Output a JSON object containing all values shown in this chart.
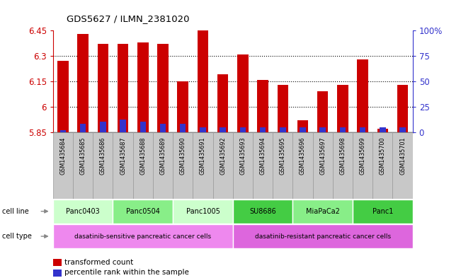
{
  "title": "GDS5627 / ILMN_2381020",
  "samples": [
    "GSM1435684",
    "GSM1435685",
    "GSM1435686",
    "GSM1435687",
    "GSM1435688",
    "GSM1435689",
    "GSM1435690",
    "GSM1435691",
    "GSM1435692",
    "GSM1435693",
    "GSM1435694",
    "GSM1435695",
    "GSM1435696",
    "GSM1435697",
    "GSM1435698",
    "GSM1435699",
    "GSM1435700",
    "GSM1435701"
  ],
  "transformed_count": [
    6.27,
    6.43,
    6.37,
    6.37,
    6.38,
    6.37,
    6.15,
    6.45,
    6.19,
    6.31,
    6.16,
    6.13,
    5.92,
    6.09,
    6.13,
    6.28,
    5.87,
    6.13
  ],
  "percentile_rank": [
    2,
    8,
    10,
    12,
    10,
    8,
    8,
    5,
    5,
    5,
    5,
    5,
    5,
    5,
    5,
    5,
    5,
    5
  ],
  "baseline": 5.85,
  "ymin": 5.85,
  "ymax": 6.45,
  "yticks": [
    5.85,
    6.0,
    6.15,
    6.3,
    6.45
  ],
  "ytick_labels": [
    "5.85",
    "6",
    "6.15",
    "6.3",
    "6.45"
  ],
  "right_yticks": [
    0,
    25,
    50,
    75,
    100
  ],
  "right_ytick_labels": [
    "0",
    "25",
    "50",
    "75",
    "100%"
  ],
  "bar_color": "#cc0000",
  "percentile_color": "#3333cc",
  "bar_width": 0.55,
  "cell_lines": [
    {
      "label": "Panc0403",
      "start": 0,
      "end": 3,
      "color": "#ccffcc"
    },
    {
      "label": "Panc0504",
      "start": 3,
      "end": 6,
      "color": "#99ee99"
    },
    {
      "label": "Panc1005",
      "start": 6,
      "end": 9,
      "color": "#ccffcc"
    },
    {
      "label": "SU8686",
      "start": 9,
      "end": 12,
      "color": "#55dd55"
    },
    {
      "label": "MiaPaCa2",
      "start": 12,
      "end": 15,
      "color": "#99ee99"
    },
    {
      "label": "Panc1",
      "start": 15,
      "end": 18,
      "color": "#55dd55"
    }
  ],
  "cell_types": [
    {
      "label": "dasatinib-sensitive pancreatic cancer cells",
      "start": 0,
      "end": 9,
      "color": "#ee88ee"
    },
    {
      "label": "dasatinib-resistant pancreatic cancer cells",
      "start": 9,
      "end": 18,
      "color": "#dd66dd"
    }
  ],
  "legend_items": [
    {
      "color": "#cc0000",
      "label": "transformed count"
    },
    {
      "color": "#3333cc",
      "label": "percentile rank within the sample"
    }
  ],
  "left_axis_color": "#cc0000",
  "right_axis_color": "#3333cc",
  "gsm_bg_color": "#c8c8c8",
  "gsm_edge_color": "#999999"
}
